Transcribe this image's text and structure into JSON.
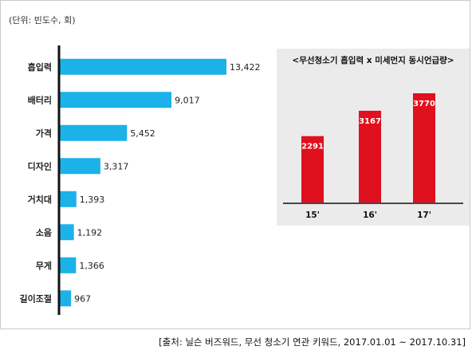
{
  "unit_note": "(단위: 빈도수, 회)",
  "source_note": "[출처: 닐슨 버즈워드, 무선 청소기 연관 키워드, 2017.01.01 ~ 2017.10.31]",
  "colors": {
    "bar": "#1ab2e8",
    "inset_bar": "#e0101e",
    "inset_bg": "#ebebeb",
    "axis": "#111111"
  },
  "chart_data": [
    {
      "type": "bar",
      "orientation": "horizontal",
      "title": "",
      "categories": [
        "흡입력",
        "배터리",
        "가격",
        "디자인",
        "거치대",
        "소음",
        "무게",
        "길이조절"
      ],
      "values": [
        13422,
        9017,
        5452,
        3317,
        1393,
        1192,
        1366,
        967
      ],
      "value_labels": [
        "13,422",
        "9,017",
        "5,452",
        "3,317",
        "1,393",
        "1,192",
        "1,366",
        "967"
      ],
      "xlim": [
        0,
        15000
      ],
      "grid": false
    },
    {
      "type": "bar",
      "title": "<무선청소기 흡입력 x 미세먼지 동시언급량>",
      "categories": [
        "15'",
        "16'",
        "17'"
      ],
      "values": [
        2291,
        3167,
        3770
      ],
      "value_labels": [
        "2291",
        "3167",
        "3770"
      ],
      "ylim": [
        0,
        4100
      ],
      "grid": false
    }
  ]
}
